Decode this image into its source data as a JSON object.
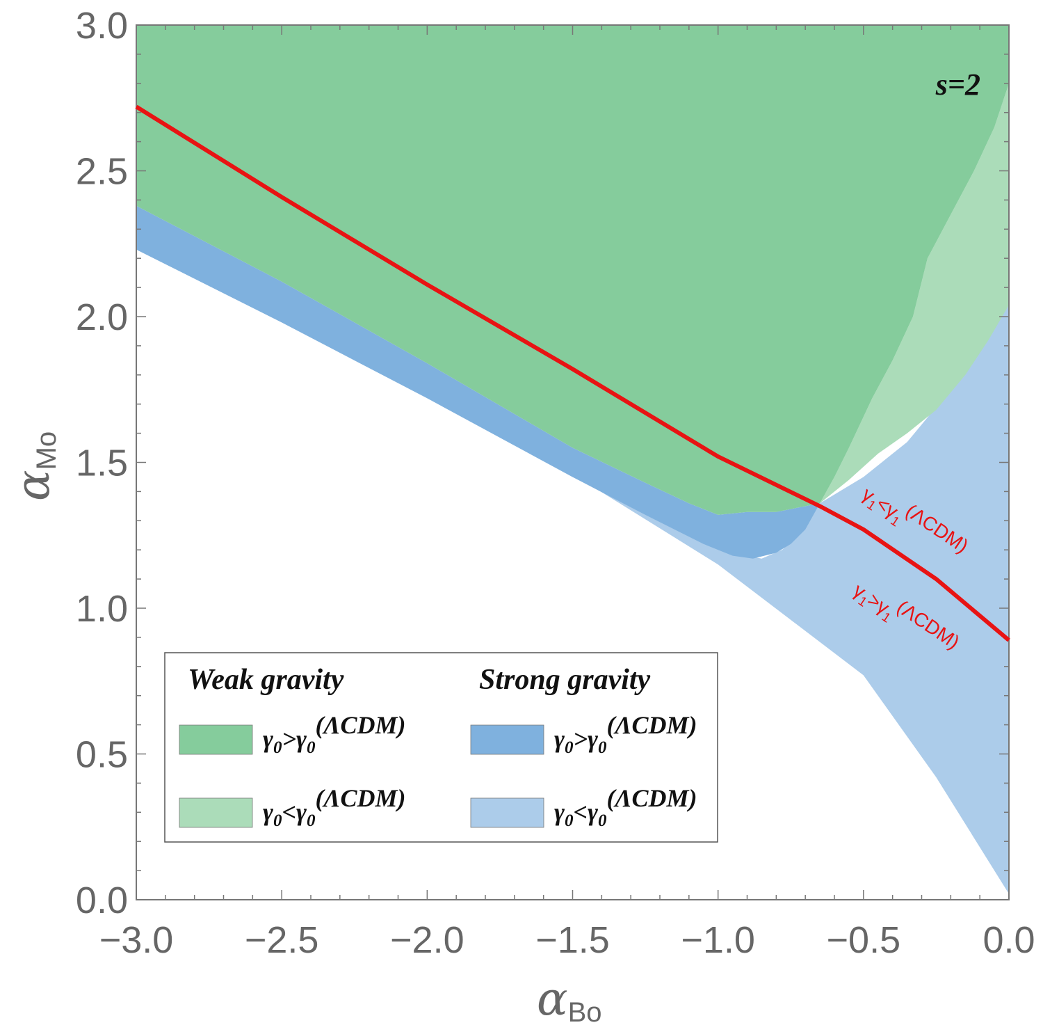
{
  "chart_data": {
    "type": "area",
    "title": "",
    "xlabel": {
      "symbol": "α",
      "subscript": "Bo"
    },
    "ylabel": {
      "symbol": "α",
      "subscript": "Mo"
    },
    "xlim": [
      -3.0,
      0.0
    ],
    "ylim": [
      0.0,
      3.0
    ],
    "grid": false,
    "x_ticks": [
      "−3.0",
      "−2.5",
      "−2.0",
      "−1.5",
      "−1.0",
      "−0.5",
      "0.0"
    ],
    "y_ticks": [
      "0.0",
      "0.5",
      "1.0",
      "1.5",
      "2.0",
      "2.5",
      "3.0"
    ],
    "x_tick_values": [
      -3.0,
      -2.5,
      -2.0,
      -1.5,
      -1.0,
      -0.5,
      0.0
    ],
    "y_tick_values": [
      0.0,
      0.5,
      1.0,
      1.5,
      2.0,
      2.5,
      3.0
    ],
    "annotation": "s=2",
    "colors": {
      "weak_gt": "#85cc9c",
      "weak_lt": "#abdcb9",
      "strong_gt": "#7fb1de",
      "strong_lt": "#acccea",
      "curve": "#e81313"
    },
    "regions": [
      {
        "name": "strong_lt",
        "color_key": "strong_lt",
        "polygon": [
          [
            -3.0,
            2.29
          ],
          [
            -2.5,
            2.03
          ],
          [
            -2.0,
            1.76
          ],
          [
            -1.5,
            1.46
          ],
          [
            -1.0,
            1.15
          ],
          [
            -0.5,
            0.77
          ],
          [
            -0.25,
            0.42
          ],
          [
            0.0,
            0.02
          ],
          [
            0.0,
            2.04
          ],
          [
            -0.1,
            1.88
          ],
          [
            -0.2,
            1.75
          ],
          [
            -0.35,
            1.57
          ],
          [
            -0.5,
            1.45
          ],
          [
            -0.65,
            1.36
          ],
          [
            -0.72,
            1.25
          ],
          [
            -0.78,
            1.2
          ],
          [
            -0.85,
            1.17
          ],
          [
            -0.95,
            1.19
          ],
          [
            -1.1,
            1.25
          ],
          [
            -1.5,
            1.45
          ],
          [
            -2.0,
            1.72
          ],
          [
            -2.5,
            1.98
          ],
          [
            -3.0,
            2.23
          ]
        ]
      },
      {
        "name": "strong_gt",
        "color_key": "strong_gt",
        "polygon": [
          [
            -3.0,
            2.38
          ],
          [
            -2.5,
            2.12
          ],
          [
            -2.0,
            1.84
          ],
          [
            -1.5,
            1.55
          ],
          [
            -1.25,
            1.43
          ],
          [
            -1.1,
            1.36
          ],
          [
            -1.0,
            1.32
          ],
          [
            -0.9,
            1.33
          ],
          [
            -0.8,
            1.33
          ],
          [
            -0.7,
            1.35
          ],
          [
            -0.65,
            1.36
          ],
          [
            -0.7,
            1.27
          ],
          [
            -0.75,
            1.22
          ],
          [
            -0.8,
            1.19
          ],
          [
            -0.88,
            1.17
          ],
          [
            -0.95,
            1.18
          ],
          [
            -1.05,
            1.22
          ],
          [
            -1.25,
            1.32
          ],
          [
            -1.5,
            1.45
          ],
          [
            -2.0,
            1.72
          ],
          [
            -2.5,
            1.98
          ],
          [
            -3.0,
            2.23
          ]
        ]
      },
      {
        "name": "weak_lt",
        "color_key": "weak_lt",
        "polygon": [
          [
            0.0,
            2.8
          ],
          [
            -0.05,
            2.65
          ],
          [
            -0.12,
            2.5
          ],
          [
            -0.2,
            2.35
          ],
          [
            -0.28,
            2.2
          ],
          [
            -0.33,
            2.0
          ],
          [
            -0.4,
            1.85
          ],
          [
            -0.47,
            1.72
          ],
          [
            -0.55,
            1.55
          ],
          [
            -0.6,
            1.45
          ],
          [
            -0.65,
            1.36
          ],
          [
            -0.55,
            1.44
          ],
          [
            -0.45,
            1.53
          ],
          [
            -0.35,
            1.6
          ],
          [
            -0.25,
            1.68
          ],
          [
            -0.15,
            1.8
          ],
          [
            -0.07,
            1.92
          ],
          [
            0.0,
            2.04
          ]
        ]
      },
      {
        "name": "weak_gt",
        "color_key": "weak_gt",
        "polygon": [
          [
            -3.0,
            3.0
          ],
          [
            0.0,
            3.0
          ],
          [
            0.0,
            2.8
          ],
          [
            -0.05,
            2.65
          ],
          [
            -0.12,
            2.5
          ],
          [
            -0.2,
            2.35
          ],
          [
            -0.28,
            2.2
          ],
          [
            -0.33,
            2.0
          ],
          [
            -0.4,
            1.85
          ],
          [
            -0.47,
            1.72
          ],
          [
            -0.55,
            1.55
          ],
          [
            -0.6,
            1.45
          ],
          [
            -0.65,
            1.36
          ],
          [
            -0.7,
            1.35
          ],
          [
            -0.8,
            1.33
          ],
          [
            -0.9,
            1.33
          ],
          [
            -1.0,
            1.32
          ],
          [
            -1.1,
            1.36
          ],
          [
            -1.25,
            1.43
          ],
          [
            -1.5,
            1.55
          ],
          [
            -2.0,
            1.84
          ],
          [
            -2.5,
            2.12
          ],
          [
            -3.0,
            2.38
          ]
        ]
      }
    ],
    "curve": {
      "name": "γ1 = γ1(ΛCDM) boundary",
      "x": [
        -3.0,
        -2.5,
        -2.0,
        -1.5,
        -1.0,
        -0.65,
        -0.5,
        -0.25,
        0.0
      ],
      "y": [
        2.72,
        2.41,
        2.11,
        1.82,
        1.52,
        1.35,
        1.27,
        1.1,
        0.89
      ]
    },
    "curve_labels": [
      {
        "base": "γ",
        "sub1": "1",
        "rel": "<",
        "base2": "γ",
        "sub2": "1",
        "sup": "(ΛCDM)",
        "x": -0.51,
        "y": 1.38
      },
      {
        "base": "γ",
        "sub1": "1",
        "rel": ">",
        "base2": "γ",
        "sub2": "1",
        "sup": "(ΛCDM)",
        "x": -0.54,
        "y": 1.05
      }
    ],
    "legend": {
      "position": "bottom-left",
      "columns": [
        {
          "heading": "Weak gravity",
          "entries": [
            {
              "color_key": "weak_gt",
              "base": "γ",
              "sub": "0",
              "rel": ">",
              "base2": "γ",
              "sub2": "0",
              "sup": "(ΛCDM)"
            },
            {
              "color_key": "weak_lt",
              "base": "γ",
              "sub": "0",
              "rel": "<",
              "base2": "γ",
              "sub2": "0",
              "sup": "(ΛCDM)"
            }
          ]
        },
        {
          "heading": "Strong gravity",
          "entries": [
            {
              "color_key": "strong_gt",
              "base": "γ",
              "sub": "0",
              "rel": ">",
              "base2": "γ",
              "sub2": "0",
              "sup": "(ΛCDM)"
            },
            {
              "color_key": "strong_lt",
              "base": "γ",
              "sub": "0",
              "rel": "<",
              "base2": "γ",
              "sub2": "0",
              "sup": "(ΛCDM)"
            }
          ]
        }
      ]
    }
  }
}
